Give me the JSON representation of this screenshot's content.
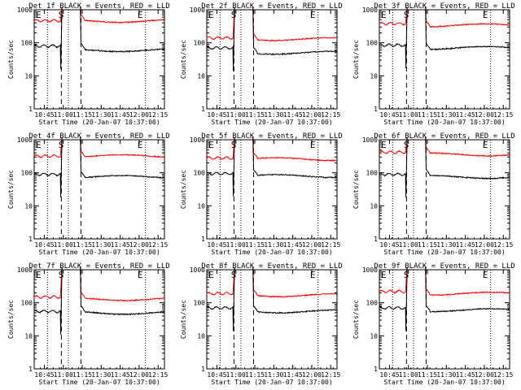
{
  "chart_data": [
    {
      "type": "line",
      "title": "Det 1f BLACK = Events, RED = LLD",
      "xlabel": "Start Time (20-Jan-07 10:37:00)",
      "ylabel": "Counts/sec",
      "yscale": "log",
      "ylim": [
        1,
        1000
      ],
      "xlim_minutes": [
        10.7,
        12.3
      ],
      "x_ticks": [
        "10:45",
        "11:00",
        "11:15",
        "11:30",
        "11:45",
        "12:00",
        "12:15"
      ],
      "y_ticks": [
        "1",
        "10",
        "100",
        "1000"
      ],
      "markers": [
        {
          "label": "E",
          "time": "10:37"
        },
        {
          "label": "S",
          "time": "11:00"
        },
        {
          "label": "E",
          "time": "12:00"
        }
      ],
      "series": [
        {
          "color": "#ff0000",
          "approx_before_gap": 470,
          "approx_after_gap": 460
        },
        {
          "color": "#000000",
          "approx_before_gap": 80,
          "approx_after_gap": 60
        }
      ]
    },
    {
      "type": "line",
      "title": "Det 2f BLACK = Events, RED = LLD",
      "xlabel": "Start Time (20-Jan-07 10:37:00)",
      "ylabel": "Counts/sec",
      "yscale": "log",
      "ylim": [
        1,
        1000
      ],
      "x_ticks": [
        "10:45",
        "11:00",
        "11:15",
        "11:30",
        "11:45",
        "12:00",
        "12:15"
      ],
      "y_ticks": [
        "1",
        "10",
        "100",
        "1000"
      ],
      "markers": [
        {
          "label": "E",
          "time": "10:37"
        },
        {
          "label": "S",
          "time": "11:00"
        },
        {
          "label": "E",
          "time": "12:00"
        }
      ],
      "series": [
        {
          "color": "#ff0000",
          "approx_before_gap": 140,
          "approx_after_gap": 130
        },
        {
          "color": "#000000",
          "approx_before_gap": 70,
          "approx_after_gap": 50
        }
      ]
    },
    {
      "type": "line",
      "title": "Det 3f BLACK = Events, RED = LLD",
      "xlabel": "Start Time (20-Jan-07 10:37:00)",
      "ylabel": "Counts/sec",
      "yscale": "log",
      "ylim": [
        1,
        1000
      ],
      "x_ticks": [
        "10:45",
        "11:00",
        "11:15",
        "11:30",
        "11:45",
        "12:00",
        "12:15"
      ],
      "y_ticks": [
        "1",
        "10",
        "100",
        "1000"
      ],
      "markers": [
        {
          "label": "E",
          "time": "10:37"
        },
        {
          "label": "S",
          "time": "11:00"
        },
        {
          "label": "E",
          "time": "12:00"
        }
      ],
      "series": [
        {
          "color": "#ff0000",
          "approx_before_gap": 380,
          "approx_after_gap": 340
        },
        {
          "color": "#000000",
          "approx_before_gap": 85,
          "approx_after_gap": 70
        }
      ]
    },
    {
      "type": "line",
      "title": "Det 4f BLACK = Events, RED = LLD",
      "xlabel": "Start Time (20-Jan-07 10:37:00)",
      "ylabel": "Counts/sec",
      "yscale": "log",
      "ylim": [
        1,
        1000
      ],
      "x_ticks": [
        "10:45",
        "11:00",
        "11:15",
        "11:30",
        "11:45",
        "12:00",
        "12:15"
      ],
      "y_ticks": [
        "1",
        "10",
        "100",
        "1000"
      ],
      "markers": [
        {
          "label": "E",
          "time": "10:37"
        },
        {
          "label": "S",
          "time": "11:00"
        },
        {
          "label": "E",
          "time": "12:00"
        }
      ],
      "series": [
        {
          "color": "#ff0000",
          "approx_before_gap": 320,
          "approx_after_gap": 320
        },
        {
          "color": "#000000",
          "approx_before_gap": 90,
          "approx_after_gap": 75
        }
      ]
    },
    {
      "type": "line",
      "title": "Det 5f BLACK = Events, RED = LLD",
      "xlabel": "Start Time (20-Jan-07 10:37:00)",
      "ylabel": "Counts/sec",
      "yscale": "log",
      "ylim": [
        1,
        1000
      ],
      "x_ticks": [
        "10:45",
        "11:00",
        "11:15",
        "11:30",
        "11:45",
        "12:00",
        "12:15"
      ],
      "y_ticks": [
        "1",
        "10",
        "100",
        "1000"
      ],
      "markers": [
        {
          "label": "E",
          "time": "10:37"
        },
        {
          "label": "S",
          "time": "11:00"
        },
        {
          "label": "E",
          "time": "12:00"
        }
      ],
      "series": [
        {
          "color": "#ff0000",
          "approx_before_gap": 280,
          "approx_after_gap": 260
        },
        {
          "color": "#000000",
          "approx_before_gap": 95,
          "approx_after_gap": 80
        }
      ]
    },
    {
      "type": "line",
      "title": "Det 6f BLACK = Events, RED = LLD",
      "xlabel": "Start Time (20-Jan-07 10:37:00)",
      "ylabel": "Counts/sec",
      "yscale": "log",
      "ylim": [
        1,
        1000
      ],
      "x_ticks": [
        "10:45",
        "11:00",
        "11:15",
        "11:30",
        "11:45",
        "12:00",
        "12:15"
      ],
      "y_ticks": [
        "1",
        "10",
        "100",
        "1000"
      ],
      "markers": [
        {
          "label": "E",
          "time": "10:37"
        },
        {
          "label": "S",
          "time": "11:00"
        },
        {
          "label": "E",
          "time": "12:00"
        }
      ],
      "series": [
        {
          "color": "#ff0000",
          "approx_before_gap": 420,
          "approx_after_gap": 360
        },
        {
          "color": "#000000",
          "approx_before_gap": 90,
          "approx_after_gap": 75
        }
      ]
    },
    {
      "type": "line",
      "title": "Det 7f BLACK = Events, RED = LLD",
      "xlabel": "Start Time (20-Jan-07 10:37:00)",
      "ylabel": "Counts/sec",
      "yscale": "log",
      "ylim": [
        1,
        1000
      ],
      "x_ticks": [
        "10:45",
        "11:00",
        "11:15",
        "11:30",
        "11:45",
        "12:00",
        "12:15"
      ],
      "y_ticks": [
        "1",
        "10",
        "100",
        "1000"
      ],
      "markers": [
        {
          "label": "E",
          "time": "10:37"
        },
        {
          "label": "S",
          "time": "11:00"
        },
        {
          "label": "E",
          "time": "12:00"
        }
      ],
      "series": [
        {
          "color": "#ff0000",
          "approx_before_gap": 150,
          "approx_after_gap": 130
        },
        {
          "color": "#000000",
          "approx_before_gap": 55,
          "approx_after_gap": 50
        }
      ]
    },
    {
      "type": "line",
      "title": "Det 8f BLACK = Events, RED = LLD",
      "xlabel": "Start Time (20-Jan-07 10:37:00)",
      "ylabel": "Counts/sec",
      "yscale": "log",
      "ylim": [
        1,
        1000
      ],
      "x_ticks": [
        "10:45",
        "11:00",
        "11:15",
        "11:30",
        "11:45",
        "12:00",
        "12:15"
      ],
      "y_ticks": [
        "1",
        "10",
        "100",
        "1000"
      ],
      "markers": [
        {
          "label": "E",
          "time": "10:37"
        },
        {
          "label": "S",
          "time": "11:00"
        },
        {
          "label": "E",
          "time": "12:00"
        }
      ],
      "series": [
        {
          "color": "#ff0000",
          "approx_before_gap": 190,
          "approx_after_gap": 170
        },
        {
          "color": "#000000",
          "approx_before_gap": 70,
          "approx_after_gap": 55
        }
      ]
    },
    {
      "type": "line",
      "title": "Det 9f BLACK = Events, RED = LLD",
      "xlabel": "Start Time (20-Jan-07 10:37:00)",
      "ylabel": "Counts/sec",
      "yscale": "log",
      "ylim": [
        1,
        1000
      ],
      "x_ticks": [
        "10:45",
        "11:00",
        "11:15",
        "11:30",
        "11:45",
        "12:00",
        "12:15"
      ],
      "y_ticks": [
        "1",
        "10",
        "100",
        "1000"
      ],
      "markers": [
        {
          "label": "E",
          "time": "10:37"
        },
        {
          "label": "S",
          "time": "11:00"
        },
        {
          "label": "E",
          "time": "12:00"
        }
      ],
      "series": [
        {
          "color": "#ff0000",
          "approx_before_gap": 220,
          "approx_after_gap": 190
        },
        {
          "color": "#000000",
          "approx_before_gap": 70,
          "approx_after_gap": 60
        }
      ]
    }
  ]
}
